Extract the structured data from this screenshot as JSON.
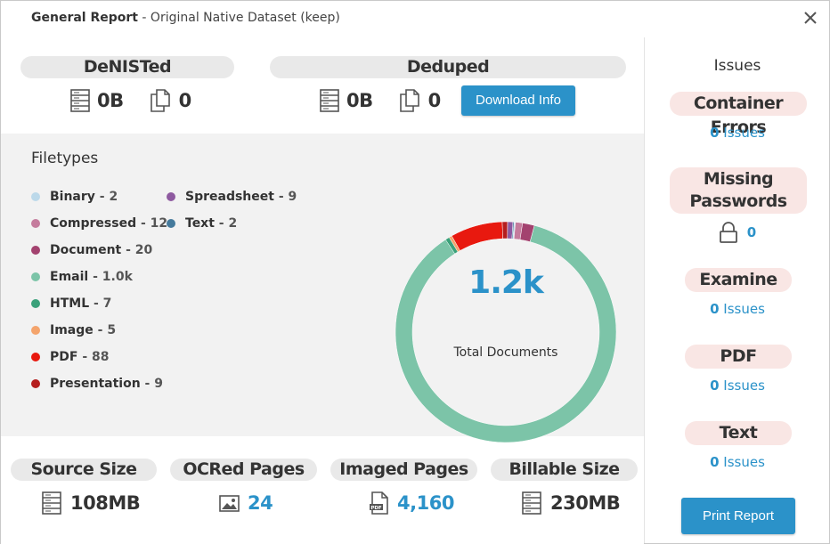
{
  "window": {
    "title_bold": "General Report",
    "title_rest": " - Original Native Dataset (keep)"
  },
  "denisted": {
    "label": "DeNISTed",
    "size": "0B",
    "count": "0"
  },
  "deduped": {
    "label": "Deduped",
    "size": "0B",
    "count": "0",
    "download_label": "Download Info"
  },
  "filetypes": {
    "title": "Filetypes",
    "items": [
      {
        "name": "Binary",
        "count": " - 2",
        "color": "#bcd9ea"
      },
      {
        "name": "Compressed",
        "count": " - 12",
        "color": "#c57c9d"
      },
      {
        "name": "Document",
        "count": " - 20",
        "color": "#a3426f"
      },
      {
        "name": "Email",
        "count": " - 1.0k",
        "color": "#7cc4a8"
      },
      {
        "name": "HTML",
        "count": " - 7",
        "color": "#3aa17a"
      },
      {
        "name": "Image",
        "count": " - 5",
        "color": "#f4a46c"
      },
      {
        "name": "PDF",
        "count": " - 88",
        "color": "#e8190f"
      },
      {
        "name": "Presentation",
        "count": " - 9",
        "color": "#b51e1e"
      },
      {
        "name": "Spreadsheet",
        "count": " - 9",
        "color": "#8e5aa0"
      },
      {
        "name": "Text",
        "count": " - 2",
        "color": "#457a9c"
      }
    ]
  },
  "chart_data": {
    "type": "pie",
    "total_value": "1.2k",
    "total_label": "Total Documents",
    "slices": [
      {
        "name": "Email",
        "value": 1000,
        "color": "#7cc4a8"
      },
      {
        "name": "HTML",
        "value": 7,
        "color": "#3aa17a"
      },
      {
        "name": "Image",
        "value": 5,
        "color": "#f4a46c"
      },
      {
        "name": "PDF",
        "value": 88,
        "color": "#e8190f"
      },
      {
        "name": "Presentation",
        "value": 9,
        "color": "#b51e1e"
      },
      {
        "name": "Spreadsheet",
        "value": 9,
        "color": "#8e5aa0"
      },
      {
        "name": "Text",
        "value": 2,
        "color": "#457a9c"
      },
      {
        "name": "Binary",
        "value": 2,
        "color": "#bcd9ea"
      },
      {
        "name": "Compressed",
        "value": 12,
        "color": "#c57c9d"
      },
      {
        "name": "Document",
        "value": 20,
        "color": "#a3426f"
      }
    ]
  },
  "bottom_stats": [
    {
      "label": "Source Size",
      "value": "108MB",
      "icon": "server-icon",
      "highlight": false
    },
    {
      "label": "OCRed Pages",
      "value": "24",
      "icon": "image-icon",
      "highlight": true
    },
    {
      "label": "Imaged Pages",
      "value": "4,160",
      "icon": "pdf-icon",
      "highlight": true
    },
    {
      "label": "Billable Size",
      "value": "230MB",
      "icon": "server-icon",
      "highlight": false
    }
  ],
  "issues": {
    "heading": "Issues",
    "issues_word": " Issues",
    "container_errors": {
      "label": "Container Errors",
      "count": "0"
    },
    "missing_passwords": {
      "label_line1": "Missing",
      "label_line2": "Passwords",
      "count": "0"
    },
    "examine": {
      "label": "Examine",
      "count": "0"
    },
    "pdf": {
      "label": "PDF",
      "count": "0"
    },
    "text": {
      "label": "Text",
      "count": "0"
    },
    "print_label": "Print Report"
  }
}
